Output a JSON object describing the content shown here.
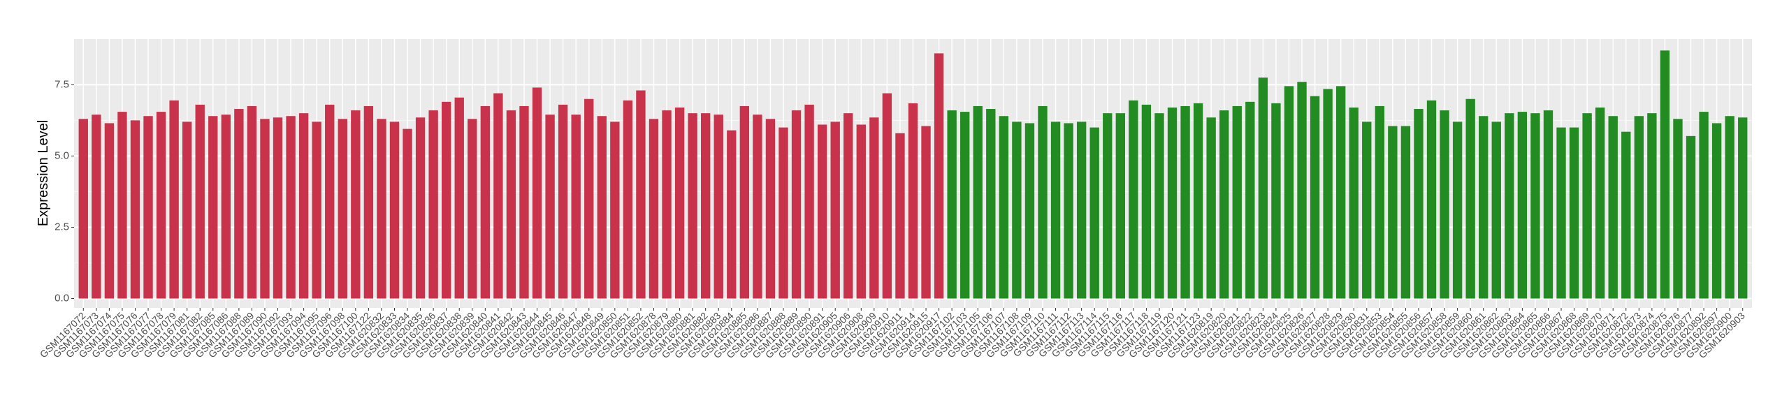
{
  "chart_data": {
    "type": "bar",
    "y_label": "Expression Level",
    "categories": [
      "GSM1167072",
      "GSM1167073",
      "GSM1167074",
      "GSM1167075",
      "GSM1167076",
      "GSM1167077",
      "GSM1167078",
      "GSM1167079",
      "GSM1167081",
      "GSM1167082",
      "GSM1167085",
      "GSM1167086",
      "GSM1167088",
      "GSM1167089",
      "GSM1167090",
      "GSM1167092",
      "GSM1167093",
      "GSM1167094",
      "GSM1167095",
      "GSM1167096",
      "GSM1167098",
      "GSM1167100",
      "GSM1167122",
      "GSM1620832",
      "GSM1620833",
      "GSM1620834",
      "GSM1620835",
      "GSM1620836",
      "GSM1620837",
      "GSM1620838",
      "GSM1620839",
      "GSM1620840",
      "GSM1620841",
      "GSM1620842",
      "GSM1620843",
      "GSM1620844",
      "GSM1620845",
      "GSM1620846",
      "GSM1620847",
      "GSM1620848",
      "GSM1620849",
      "GSM1620850",
      "GSM1620851",
      "GSM1620852",
      "GSM1620878",
      "GSM1620879",
      "GSM1620880",
      "GSM1620881",
      "GSM1620882",
      "GSM1620883",
      "GSM1620884",
      "GSM1620885",
      "GSM1620886",
      "GSM1620887",
      "GSM1620888",
      "GSM1620889",
      "GSM1620890",
      "GSM1620891",
      "GSM1620905",
      "GSM1620906",
      "GSM1620908",
      "GSM1620909",
      "GSM1620910",
      "GSM1620911",
      "GSM1620914",
      "GSM1620915",
      "GSM1620917",
      "GSM1167102",
      "GSM1167103",
      "GSM1167105",
      "GSM1167106",
      "GSM1167107",
      "GSM1167108",
      "GSM1167109",
      "GSM1167110",
      "GSM1167111",
      "GSM1167112",
      "GSM1167113",
      "GSM1167114",
      "GSM1167115",
      "GSM1167116",
      "GSM1167117",
      "GSM1167118",
      "GSM1167119",
      "GSM1167120",
      "GSM1167121",
      "GSM1167123",
      "GSM1620819",
      "GSM1620820",
      "GSM1620821",
      "GSM1620822",
      "GSM1620823",
      "GSM1620824",
      "GSM1620825",
      "GSM1620826",
      "GSM1620827",
      "GSM1620828",
      "GSM1620829",
      "GSM1620830",
      "GSM1620831",
      "GSM1620853",
      "GSM1620854",
      "GSM1620855",
      "GSM1620856",
      "GSM1620857",
      "GSM1620858",
      "GSM1620859",
      "GSM1620860",
      "GSM1620861",
      "GSM1620862",
      "GSM1620863",
      "GSM1620864",
      "GSM1620865",
      "GSM1620866",
      "GSM1620867",
      "GSM1620868",
      "GSM1620869",
      "GSM1620870",
      "GSM1620871",
      "GSM1620872",
      "GSM1620873",
      "GSM1620874",
      "GSM1620875",
      "GSM1620876",
      "GSM1620877",
      "GSM1620892",
      "GSM1620897",
      "GSM1620900",
      "GSM1620903"
    ],
    "values": [
      6.3,
      6.45,
      6.15,
      6.55,
      6.25,
      6.4,
      6.55,
      6.95,
      6.2,
      6.8,
      6.4,
      6.45,
      6.65,
      6.75,
      6.3,
      6.35,
      6.4,
      6.5,
      6.2,
      6.8,
      6.3,
      6.6,
      6.75,
      6.3,
      6.2,
      5.95,
      6.35,
      6.6,
      6.9,
      7.05,
      6.3,
      6.75,
      7.2,
      6.6,
      6.75,
      7.4,
      6.45,
      6.8,
      6.45,
      7.0,
      6.4,
      6.2,
      6.95,
      7.3,
      6.3,
      6.6,
      6.7,
      6.5,
      6.5,
      6.45,
      5.9,
      6.75,
      6.45,
      6.3,
      6.0,
      6.6,
      6.8,
      6.1,
      6.2,
      6.5,
      6.1,
      6.35,
      7.2,
      5.8,
      6.85,
      6.05,
      8.6,
      6.6,
      6.55,
      6.75,
      6.65,
      6.4,
      6.2,
      6.15,
      6.75,
      6.2,
      6.15,
      6.2,
      6.0,
      6.5,
      6.5,
      6.95,
      6.8,
      6.5,
      6.7,
      6.75,
      6.85,
      6.35,
      6.6,
      6.75,
      6.9,
      7.75,
      6.85,
      7.45,
      7.6,
      7.1,
      7.35,
      7.45,
      6.7,
      6.2,
      6.75,
      6.05,
      6.05,
      6.65,
      6.95,
      6.6,
      6.2,
      7.0,
      6.4,
      6.2,
      6.5,
      6.55,
      6.5,
      6.6,
      6.0,
      6.0,
      6.5,
      6.7,
      6.4,
      5.85,
      6.4,
      6.5,
      8.7,
      6.3,
      5.7,
      6.55,
      6.15,
      6.4,
      6.35
    ],
    "colors": [
      "#c8324b",
      "#c8324b",
      "#c8324b",
      "#c8324b",
      "#c8324b",
      "#c8324b",
      "#c8324b",
      "#c8324b",
      "#c8324b",
      "#c8324b",
      "#c8324b",
      "#c8324b",
      "#c8324b",
      "#c8324b",
      "#c8324b",
      "#c8324b",
      "#c8324b",
      "#c8324b",
      "#c8324b",
      "#c8324b",
      "#c8324b",
      "#c8324b",
      "#c8324b",
      "#c8324b",
      "#c8324b",
      "#c8324b",
      "#c8324b",
      "#c8324b",
      "#c8324b",
      "#c8324b",
      "#c8324b",
      "#c8324b",
      "#c8324b",
      "#c8324b",
      "#c8324b",
      "#c8324b",
      "#c8324b",
      "#c8324b",
      "#c8324b",
      "#c8324b",
      "#c8324b",
      "#c8324b",
      "#c8324b",
      "#c8324b",
      "#c8324b",
      "#c8324b",
      "#c8324b",
      "#c8324b",
      "#c8324b",
      "#c8324b",
      "#c8324b",
      "#c8324b",
      "#c8324b",
      "#c8324b",
      "#c8324b",
      "#c8324b",
      "#c8324b",
      "#c8324b",
      "#c8324b",
      "#c8324b",
      "#c8324b",
      "#c8324b",
      "#c8324b",
      "#c8324b",
      "#c8324b",
      "#c8324b",
      "#c8324b",
      "#228b22",
      "#228b22",
      "#228b22",
      "#228b22",
      "#228b22",
      "#228b22",
      "#228b22",
      "#228b22",
      "#228b22",
      "#228b22",
      "#228b22",
      "#228b22",
      "#228b22",
      "#228b22",
      "#228b22",
      "#228b22",
      "#228b22",
      "#228b22",
      "#228b22",
      "#228b22",
      "#228b22",
      "#228b22",
      "#228b22",
      "#228b22",
      "#228b22",
      "#228b22",
      "#228b22",
      "#228b22",
      "#228b22",
      "#228b22",
      "#228b22",
      "#228b22",
      "#228b22",
      "#228b22",
      "#228b22",
      "#228b22",
      "#228b22",
      "#228b22",
      "#228b22",
      "#228b22",
      "#228b22",
      "#228b22",
      "#228b22",
      "#228b22",
      "#228b22",
      "#228b22",
      "#228b22",
      "#228b22",
      "#228b22",
      "#228b22",
      "#228b22",
      "#228b22",
      "#228b22",
      "#228b22",
      "#228b22",
      "#228b22",
      "#228b22",
      "#228b22",
      "#228b22",
      "#228b22",
      "#228b22",
      "#228b22"
    ],
    "ylim": [
      -0.33,
      9.1
    ],
    "yticks": [
      {
        "value": 0,
        "label": "0.0"
      },
      2.5,
      {
        "value": 5,
        "label": "5.0"
      },
      7.5
    ],
    "grid": true
  }
}
